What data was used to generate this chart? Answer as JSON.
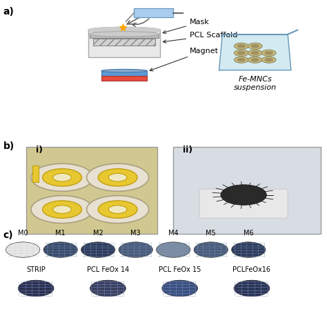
{
  "fig_width": 4.74,
  "fig_height": 4.61,
  "dpi": 100,
  "bg_color": "#ffffff",
  "panel_a_label": "a)",
  "panel_b_label": "b)",
  "panel_c_label": "c)",
  "panel_b_i_label": "i)",
  "panel_b_ii_label": "ii)",
  "mask_label": "Mask",
  "pcl_label": "PCL Scaffold",
  "magnet_label": "Magnet",
  "femncs_label": "Fe-MNCs\nsuspension",
  "m_labels": [
    "M0",
    "M1",
    "M2",
    "M3",
    "M4",
    "M5",
    "M6"
  ],
  "strip_labels": [
    "STRIP",
    "PCL FeOx 14",
    "PCL FeOx 15",
    "PCLFeOx16"
  ],
  "magnet_blue": "#5b9bd5",
  "magnet_red": "#e74c3c",
  "container_color": "#d0e8f0",
  "scaffold_color": "#c8c8c8",
  "mask_color": "#f5d060",
  "arrow_color": "#555555",
  "disc_m0": "#e8e8e8",
  "disc_m1": "#3a4a6b",
  "disc_m2": "#2d3a5c",
  "disc_m3": "#4a5a7a",
  "disc_m4": "#7a8aa0",
  "disc_m5": "#4a5a7a",
  "disc_m6": "#2d3a5c",
  "disc_strip": "#2a3050",
  "disc_pcl14": "#3a4060",
  "disc_pcl15": "#3a5080",
  "disc_pcl16": "#2a3555",
  "photo_bg_i": "#c8c0a0",
  "photo_bg_ii": "#d0d8e0",
  "font_size_labels": 9,
  "font_size_small": 7,
  "font_size_panel": 10
}
